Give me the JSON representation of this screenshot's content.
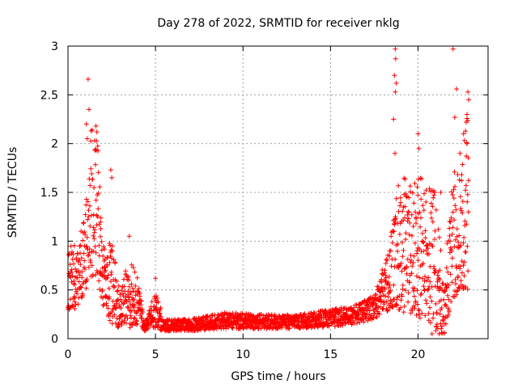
{
  "chart_data": {
    "type": "scatter",
    "title": "Day 278 of 2022, SRMTID for receiver nklg",
    "xlabel": "GPS time / hours",
    "ylabel": "SRMTID / TECUs",
    "xlim": [
      0,
      24
    ],
    "ylim": [
      0,
      3
    ],
    "grid": true,
    "marker": "+",
    "marker_color": "#ff0000",
    "x_ticks": [
      "0",
      "5",
      "10",
      "15",
      "20"
    ],
    "y_ticks": [
      "0",
      "0.5",
      "1",
      "1.5",
      "2",
      "2.5",
      "3"
    ],
    "envelope": [
      {
        "t": 0.0,
        "lo": 0.3,
        "hi": 1.0
      },
      {
        "t": 0.5,
        "lo": 0.3,
        "hi": 0.95
      },
      {
        "t": 1.0,
        "lo": 0.5,
        "hi": 1.4
      },
      {
        "t": 1.3,
        "lo": 0.6,
        "hi": 2.2
      },
      {
        "t": 1.7,
        "lo": 0.6,
        "hi": 2.0
      },
      {
        "t": 2.0,
        "lo": 0.3,
        "hi": 1.0
      },
      {
        "t": 2.5,
        "lo": 0.15,
        "hi": 1.0
      },
      {
        "t": 3.0,
        "lo": 0.1,
        "hi": 0.45
      },
      {
        "t": 3.5,
        "lo": 0.1,
        "hi": 0.9
      },
      {
        "t": 4.0,
        "lo": 0.15,
        "hi": 0.6
      },
      {
        "t": 4.4,
        "lo": 0.07,
        "hi": 0.15
      },
      {
        "t": 5.0,
        "lo": 0.1,
        "hi": 0.5
      },
      {
        "t": 5.5,
        "lo": 0.08,
        "hi": 0.2
      },
      {
        "t": 7.0,
        "lo": 0.08,
        "hi": 0.2
      },
      {
        "t": 9.0,
        "lo": 0.1,
        "hi": 0.27
      },
      {
        "t": 11.0,
        "lo": 0.1,
        "hi": 0.25
      },
      {
        "t": 13.0,
        "lo": 0.1,
        "hi": 0.24
      },
      {
        "t": 15.0,
        "lo": 0.12,
        "hi": 0.3
      },
      {
        "t": 16.5,
        "lo": 0.15,
        "hi": 0.35
      },
      {
        "t": 17.5,
        "lo": 0.2,
        "hi": 0.45
      },
      {
        "t": 18.4,
        "lo": 0.3,
        "hi": 1.0
      },
      {
        "t": 18.8,
        "lo": 0.3,
        "hi": 1.6
      },
      {
        "t": 19.5,
        "lo": 0.25,
        "hi": 1.7
      },
      {
        "t": 20.0,
        "lo": 0.2,
        "hi": 1.8
      },
      {
        "t": 20.5,
        "lo": 0.2,
        "hi": 1.6
      },
      {
        "t": 21.0,
        "lo": 0.08,
        "hi": 1.5
      },
      {
        "t": 21.5,
        "lo": 0.05,
        "hi": 0.6
      },
      {
        "t": 22.0,
        "lo": 0.4,
        "hi": 1.9
      },
      {
        "t": 22.5,
        "lo": 0.5,
        "hi": 1.9
      },
      {
        "t": 22.9,
        "lo": 0.5,
        "hi": 2.4
      }
    ],
    "outliers": [
      {
        "t": 1.15,
        "v": 2.66
      },
      {
        "t": 1.2,
        "v": 2.35
      },
      {
        "t": 1.05,
        "v": 2.2
      },
      {
        "t": 1.1,
        "v": 2.05
      },
      {
        "t": 1.6,
        "v": 2.18
      },
      {
        "t": 1.65,
        "v": 2.12
      },
      {
        "t": 2.45,
        "v": 1.73
      },
      {
        "t": 2.5,
        "v": 1.65
      },
      {
        "t": 3.5,
        "v": 1.05
      },
      {
        "t": 5.0,
        "v": 0.62
      },
      {
        "t": 18.7,
        "v": 2.97
      },
      {
        "t": 18.72,
        "v": 2.87
      },
      {
        "t": 18.65,
        "v": 2.7
      },
      {
        "t": 18.75,
        "v": 2.62
      },
      {
        "t": 18.7,
        "v": 2.53
      },
      {
        "t": 18.6,
        "v": 2.25
      },
      {
        "t": 18.68,
        "v": 1.9
      },
      {
        "t": 20.0,
        "v": 2.1
      },
      {
        "t": 20.05,
        "v": 1.95
      },
      {
        "t": 22.0,
        "v": 2.97
      },
      {
        "t": 22.2,
        "v": 2.56
      },
      {
        "t": 22.1,
        "v": 2.27
      },
      {
        "t": 22.85,
        "v": 2.53
      },
      {
        "t": 22.9,
        "v": 2.45
      },
      {
        "t": 22.8,
        "v": 2.3
      },
      {
        "t": 22.75,
        "v": 2.22
      },
      {
        "t": 22.8,
        "v": 2.0
      },
      {
        "t": 22.6,
        "v": 2.1
      },
      {
        "t": 22.4,
        "v": 1.9
      },
      {
        "t": 21.3,
        "v": 1.5
      },
      {
        "t": 20.8,
        "v": 0.05
      },
      {
        "t": 21.2,
        "v": 0.05
      }
    ]
  }
}
